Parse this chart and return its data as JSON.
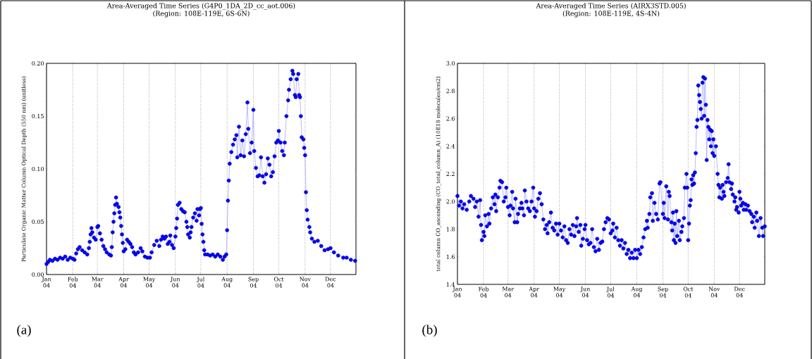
{
  "chart_data": [
    {
      "type": "line",
      "title": "Area-Averaged Time Series (G4P0_1DA_2D_cc_aot.006)",
      "subtitle": "(Region: 108E-119E, 6S-6N)",
      "ylabel": "Particulate Organic Matter Column Optical Depth (550 nm)  (unitless)",
      "annotations": [
        "(a)"
      ],
      "marker": "circle",
      "line_style": "solid",
      "grid": "x",
      "xlim": [
        "2004-01-01",
        "2004-12-31"
      ],
      "xticks": [
        {
          "value": "2004-01-01",
          "label": "Jan 04"
        },
        {
          "value": "2004-02-01",
          "label": "Feb 04"
        },
        {
          "value": "2004-03-01",
          "label": "Mar 04"
        },
        {
          "value": "2004-04-01",
          "label": "Apr 04"
        },
        {
          "value": "2004-05-01",
          "label": "May 04"
        },
        {
          "value": "2004-06-01",
          "label": "Jun 04"
        },
        {
          "value": "2004-07-01",
          "label": "Jul 04"
        },
        {
          "value": "2004-08-01",
          "label": "Aug 04"
        },
        {
          "value": "2004-09-01",
          "label": "Sep 04"
        },
        {
          "value": "2004-10-01",
          "label": "Oct 04"
        },
        {
          "value": "2004-11-01",
          "label": "Nov 04"
        },
        {
          "value": "2004-12-01",
          "label": "Dec 04"
        }
      ],
      "ylim": [
        0,
        0.2
      ],
      "yticks": [
        {
          "value": 0,
          "label": "0.00"
        },
        0.05,
        {
          "value": 0.1,
          "label": "0.10"
        },
        0.15,
        {
          "value": 0.2,
          "label": "0.20"
        }
      ],
      "x": [
        "2004-01-01",
        "2004-01-03",
        "2004-01-05",
        "2004-01-08",
        "2004-01-11",
        "2004-01-14",
        "2004-01-17",
        "2004-01-20",
        "2004-01-23",
        "2004-01-26",
        "2004-01-29",
        "2004-02-01",
        "2004-02-03",
        "2004-02-05",
        "2004-02-07",
        "2004-02-09",
        "2004-02-12",
        "2004-02-15",
        "2004-02-18",
        "2004-02-20",
        "2004-02-21",
        "2004-02-22",
        "2004-02-23",
        "2004-02-24",
        "2004-02-26",
        "2004-02-28",
        "2004-03-01",
        "2004-03-02",
        "2004-03-04",
        "2004-03-06",
        "2004-03-08",
        "2004-03-10",
        "2004-03-12",
        "2004-03-15",
        "2004-03-17",
        "2004-03-18",
        "2004-03-19",
        "2004-03-20",
        "2004-03-21",
        "2004-03-22",
        "2004-03-23",
        "2004-03-24",
        "2004-03-26",
        "2004-03-27",
        "2004-03-28",
        "2004-03-29",
        "2004-03-30",
        "2004-03-31",
        "2004-04-01",
        "2004-04-03",
        "2004-04-05",
        "2004-04-07",
        "2004-04-09",
        "2004-04-11",
        "2004-04-13",
        "2004-04-15",
        "2004-04-18",
        "2004-04-21",
        "2004-04-23",
        "2004-04-26",
        "2004-04-29",
        "2004-05-02",
        "2004-05-04",
        "2004-05-07",
        "2004-05-10",
        "2004-05-13",
        "2004-05-15",
        "2004-05-17",
        "2004-05-19",
        "2004-05-21",
        "2004-05-23",
        "2004-05-25",
        "2004-05-26",
        "2004-05-28",
        "2004-05-30",
        "2004-06-01",
        "2004-06-02",
        "2004-06-03",
        "2004-06-04",
        "2004-06-06",
        "2004-06-08",
        "2004-06-10",
        "2004-06-12",
        "2004-06-14",
        "2004-06-15",
        "2004-06-16",
        "2004-06-18",
        "2004-06-19",
        "2004-06-20",
        "2004-06-22",
        "2004-06-24",
        "2004-06-26",
        "2004-06-27",
        "2004-06-29",
        "2004-06-30",
        "2004-07-01",
        "2004-07-02",
        "2004-07-03",
        "2004-07-04",
        "2004-07-05",
        "2004-07-06",
        "2004-07-09",
        "2004-07-12",
        "2004-07-15",
        "2004-07-18",
        "2004-07-21",
        "2004-07-24",
        "2004-07-27",
        "2004-07-29",
        "2004-07-31",
        "2004-08-01",
        "2004-08-02",
        "2004-08-03",
        "2004-08-04",
        "2004-08-06",
        "2004-08-08",
        "2004-08-10",
        "2004-08-12",
        "2004-08-13",
        "2004-08-15",
        "2004-08-17",
        "2004-08-19",
        "2004-08-21",
        "2004-08-23",
        "2004-08-25",
        "2004-08-26",
        "2004-08-28",
        "2004-08-30",
        "2004-09-01",
        "2004-09-02",
        "2004-09-04",
        "2004-09-06",
        "2004-09-08",
        "2004-09-10",
        "2004-09-12",
        "2004-09-14",
        "2004-09-16",
        "2004-09-18",
        "2004-09-20",
        "2004-09-22",
        "2004-09-24",
        "2004-09-26",
        "2004-09-28",
        "2004-09-30",
        "2004-10-01",
        "2004-10-03",
        "2004-10-05",
        "2004-10-07",
        "2004-10-08",
        "2004-10-10",
        "2004-10-12",
        "2004-10-13",
        "2004-10-15",
        "2004-10-17",
        "2004-10-18",
        "2004-10-20",
        "2004-10-21",
        "2004-10-22",
        "2004-10-24",
        "2004-10-25",
        "2004-10-26",
        "2004-10-27",
        "2004-10-28",
        "2004-10-30",
        "2004-10-31",
        "2004-11-01",
        "2004-11-02",
        "2004-11-03",
        "2004-11-04",
        "2004-11-06",
        "2004-11-07",
        "2004-11-09",
        "2004-11-12",
        "2004-11-16",
        "2004-11-20",
        "2004-11-24",
        "2004-11-28",
        "2004-12-01",
        "2004-12-05",
        "2004-12-10",
        "2004-12-16",
        "2004-12-20",
        "2004-12-25",
        "2004-12-30"
      ],
      "series": [
        {
          "color": "#0000ff",
          "values": [
            0.01,
            0.012,
            0.014,
            0.013,
            0.015,
            0.014,
            0.016,
            0.015,
            0.017,
            0.014,
            0.016,
            0.015,
            0.014,
            0.02,
            0.024,
            0.026,
            0.023,
            0.021,
            0.019,
            0.025,
            0.031,
            0.038,
            0.044,
            0.04,
            0.035,
            0.033,
            0.045,
            0.046,
            0.039,
            0.033,
            0.027,
            0.024,
            0.021,
            0.019,
            0.018,
            0.026,
            0.04,
            0.05,
            0.058,
            0.066,
            0.073,
            0.067,
            0.064,
            0.059,
            0.054,
            0.046,
            0.038,
            0.03,
            0.022,
            0.024,
            0.033,
            0.031,
            0.029,
            0.026,
            0.021,
            0.019,
            0.021,
            0.025,
            0.022,
            0.017,
            0.016,
            0.016,
            0.021,
            0.028,
            0.032,
            0.027,
            0.033,
            0.036,
            0.034,
            0.036,
            0.029,
            0.031,
            0.037,
            0.028,
            0.025,
            0.036,
            0.044,
            0.053,
            0.066,
            0.068,
            0.062,
            0.06,
            0.059,
            0.05,
            0.045,
            0.038,
            0.035,
            0.04,
            0.045,
            0.054,
            0.058,
            0.051,
            0.062,
            0.056,
            0.062,
            0.063,
            0.048,
            0.038,
            0.031,
            0.023,
            0.019,
            0.019,
            0.018,
            0.019,
            0.017,
            0.019,
            0.017,
            0.014,
            0.017,
            0.019,
            0.042,
            0.07,
            0.089,
            0.105,
            0.116,
            0.123,
            0.128,
            0.132,
            0.111,
            0.14,
            0.113,
            0.127,
            0.112,
            0.133,
            0.163,
            0.138,
            0.115,
            0.125,
            0.156,
            0.117,
            0.101,
            0.093,
            0.094,
            0.111,
            0.093,
            0.087,
            0.095,
            0.11,
            0.104,
            0.093,
            0.097,
            0.112,
            0.125,
            0.127,
            0.136,
            0.125,
            0.117,
            0.113,
            0.125,
            0.15,
            0.165,
            0.175,
            0.185,
            0.193,
            0.19,
            0.17,
            0.168,
            0.185,
            0.19,
            0.17,
            0.168,
            0.15,
            0.13,
            0.128,
            0.12,
            0.113,
            0.078,
            0.061,
            0.052,
            0.045,
            0.04,
            0.034,
            0.031,
            0.032,
            0.027,
            0.023,
            0.024,
            0.025,
            0.021,
            0.018,
            0.016,
            0.016,
            0.014,
            0.013
          ]
        }
      ]
    },
    {
      "type": "line",
      "title": "Area-Averaged Time Series (AIRX3STD.005)",
      "subtitle": "(Region: 108E-119E, 4S-4N)",
      "ylabel": "total column CO_ascending (CO_total_column_A)  (10E18 molecules/cm2)",
      "annotations": [
        "(b)"
      ],
      "marker": "circle",
      "line_style": "solid",
      "grid": "x",
      "xlim": [
        "2004-01-01",
        "2004-12-31"
      ],
      "xticks": [
        {
          "value": "2004-01-01",
          "label": "Jan 04"
        },
        {
          "value": "2004-02-01",
          "label": "Feb 04"
        },
        {
          "value": "2004-03-01",
          "label": "Mar 04"
        },
        {
          "value": "2004-04-01",
          "label": "Apr 04"
        },
        {
          "value": "2004-05-01",
          "label": "May 04"
        },
        {
          "value": "2004-06-01",
          "label": "Jun 04"
        },
        {
          "value": "2004-07-01",
          "label": "Jul 04"
        },
        {
          "value": "2004-08-01",
          "label": "Aug 04"
        },
        {
          "value": "2004-09-01",
          "label": "Sep 04"
        },
        {
          "value": "2004-10-01",
          "label": "Oct 04"
        },
        {
          "value": "2004-11-01",
          "label": "Nov 04"
        },
        {
          "value": "2004-12-01",
          "label": "Dec 04"
        }
      ],
      "ylim": [
        1.4,
        3.0
      ],
      "yticks": [
        1.4,
        1.6,
        1.8,
        {
          "value": 2,
          "label": "2.0"
        },
        2.2,
        2.4,
        2.6,
        2.8,
        {
          "value": 3,
          "label": "3.0"
        }
      ],
      "x": [
        "2004-01-01",
        "2004-01-03",
        "2004-01-05",
        "2004-01-07",
        "2004-01-09",
        "2004-01-12",
        "2004-01-15",
        "2004-01-17",
        "2004-01-20",
        "2004-01-22",
        "2004-01-24",
        "2004-01-26",
        "2004-01-28",
        "2004-01-29",
        "2004-01-30",
        "2004-02-01",
        "2004-02-02",
        "2004-02-03",
        "2004-02-05",
        "2004-02-07",
        "2004-02-08",
        "2004-02-10",
        "2004-02-12",
        "2004-02-14",
        "2004-02-15",
        "2004-02-16",
        "2004-02-18",
        "2004-02-20",
        "2004-02-21",
        "2004-02-23",
        "2004-02-25",
        "2004-02-27",
        "2004-02-28",
        "2004-03-01",
        "2004-03-03",
        "2004-03-04",
        "2004-03-06",
        "2004-03-07",
        "2004-03-09",
        "2004-03-10",
        "2004-03-12",
        "2004-03-13",
        "2004-03-15",
        "2004-03-17",
        "2004-03-18",
        "2004-03-20",
        "2004-03-21",
        "2004-03-23",
        "2004-03-25",
        "2004-03-27",
        "2004-03-29",
        "2004-03-31",
        "2004-04-01",
        "2004-04-02",
        "2004-04-04",
        "2004-04-06",
        "2004-04-08",
        "2004-04-10",
        "2004-04-12",
        "2004-04-14",
        "2004-04-16",
        "2004-04-17",
        "2004-04-19",
        "2004-04-21",
        "2004-04-23",
        "2004-04-25",
        "2004-04-27",
        "2004-04-29",
        "2004-05-01",
        "2004-05-03",
        "2004-05-05",
        "2004-05-07",
        "2004-05-09",
        "2004-05-11",
        "2004-05-13",
        "2004-05-15",
        "2004-05-17",
        "2004-05-19",
        "2004-05-21",
        "2004-05-22",
        "2004-05-24",
        "2004-05-26",
        "2004-05-27",
        "2004-05-29",
        "2004-05-31",
        "2004-06-01",
        "2004-06-03",
        "2004-06-05",
        "2004-06-07",
        "2004-06-09",
        "2004-06-11",
        "2004-06-13",
        "2004-06-15",
        "2004-06-17",
        "2004-06-19",
        "2004-06-21",
        "2004-06-23",
        "2004-06-25",
        "2004-06-27",
        "2004-06-29",
        "2004-07-01",
        "2004-07-03",
        "2004-07-04",
        "2004-07-06",
        "2004-07-08",
        "2004-07-10",
        "2004-07-12",
        "2004-07-14",
        "2004-07-16",
        "2004-07-18",
        "2004-07-20",
        "2004-07-22",
        "2004-07-24",
        "2004-07-26",
        "2004-07-28",
        "2004-07-30",
        "2004-08-01",
        "2004-08-03",
        "2004-08-05",
        "2004-08-07",
        "2004-08-09",
        "2004-08-11",
        "2004-08-13",
        "2004-08-14",
        "2004-08-16",
        "2004-08-17",
        "2004-08-19",
        "2004-08-20",
        "2004-08-22",
        "2004-08-24",
        "2004-08-26",
        "2004-08-28",
        "2004-08-29",
        "2004-09-01",
        "2004-09-02",
        "2004-09-03",
        "2004-09-05",
        "2004-09-07",
        "2004-09-08",
        "2004-09-09",
        "2004-09-11",
        "2004-09-12",
        "2004-09-13",
        "2004-09-14",
        "2004-09-15",
        "2004-09-16",
        "2004-09-17",
        "2004-09-18",
        "2004-09-20",
        "2004-09-21",
        "2004-09-23",
        "2004-09-24",
        "2004-09-26",
        "2004-09-27",
        "2004-09-29",
        "2004-09-30",
        "2004-10-01",
        "2004-10-02",
        "2004-10-03",
        "2004-10-04",
        "2004-10-05",
        "2004-10-06",
        "2004-10-07",
        "2004-10-08",
        "2004-10-09",
        "2004-10-10",
        "2004-10-11",
        "2004-10-12",
        "2004-10-13",
        "2004-10-14",
        "2004-10-15",
        "2004-10-16",
        "2004-10-17",
        "2004-10-18",
        "2004-10-19",
        "2004-10-20",
        "2004-10-21",
        "2004-10-22",
        "2004-10-23",
        "2004-10-24",
        "2004-10-25",
        "2004-10-26",
        "2004-10-27",
        "2004-10-28",
        "2004-10-29",
        "2004-10-30",
        "2004-10-31",
        "2004-11-01",
        "2004-11-03",
        "2004-11-05",
        "2004-11-06",
        "2004-11-07",
        "2004-11-08",
        "2004-11-10",
        "2004-11-11",
        "2004-11-12",
        "2004-11-13",
        "2004-11-15",
        "2004-11-17",
        "2004-11-18",
        "2004-11-19",
        "2004-11-21",
        "2004-11-22",
        "2004-11-23",
        "2004-11-25",
        "2004-11-26",
        "2004-11-27",
        "2004-11-28",
        "2004-11-30",
        "2004-12-01",
        "2004-12-02",
        "2004-12-03",
        "2004-12-05",
        "2004-12-06",
        "2004-12-08",
        "2004-12-09",
        "2004-12-11",
        "2004-12-13",
        "2004-12-15",
        "2004-12-16",
        "2004-12-18",
        "2004-12-19",
        "2004-12-21",
        "2004-12-22",
        "2004-12-24",
        "2004-12-26",
        "2004-12-28",
        "2004-12-29",
        "2004-12-31"
      ],
      "series": [
        {
          "color": "#0000ff",
          "values": [
            2.04,
            1.97,
            2.0,
            1.95,
            1.98,
            1.94,
            2.0,
            2.04,
            2.02,
            1.96,
            2.0,
            1.89,
            2.01,
            1.83,
            1.72,
            1.78,
            1.75,
            1.9,
            1.82,
            1.91,
            1.84,
            1.95,
            2.03,
            1.98,
            2.05,
            1.93,
            2.03,
            2.1,
            2.15,
            2.14,
            2.0,
            2.03,
            2.1,
            1.96,
            1.9,
            1.97,
            2.07,
            1.95,
            1.85,
            2.02,
            1.85,
            1.91,
            1.95,
            1.99,
            1.95,
            1.9,
            2.08,
            2.0,
            1.95,
            1.93,
            2.0,
            2.1,
            1.95,
            1.89,
            1.93,
            2.02,
            2.06,
            1.98,
            1.87,
            1.8,
            1.83,
            1.77,
            1.85,
            1.92,
            1.81,
            1.79,
            1.84,
            1.76,
            1.84,
            1.79,
            1.74,
            1.82,
            1.72,
            1.7,
            1.8,
            1.76,
            1.83,
            1.75,
            1.82,
            1.88,
            1.78,
            1.83,
            1.68,
            1.73,
            1.8,
            1.83,
            1.72,
            1.69,
            1.7,
            1.8,
            1.67,
            1.64,
            1.73,
            1.65,
            1.7,
            1.71,
            1.8,
            1.85,
            1.88,
            1.87,
            1.77,
            1.79,
            1.84,
            1.74,
            1.81,
            1.72,
            1.68,
            1.72,
            1.66,
            1.7,
            1.62,
            1.65,
            1.59,
            1.63,
            1.59,
            1.65,
            1.59,
            1.65,
            1.62,
            1.67,
            1.74,
            1.8,
            1.86,
            1.81,
            1.91,
            2.03,
            2.06,
            1.86,
            1.99,
            1.91,
            1.87,
            2.13,
            2.14,
            1.91,
            1.99,
            1.88,
            2.11,
            1.87,
            2.07,
            2.04,
            1.85,
            1.79,
            1.92,
            1.72,
            1.84,
            1.7,
            1.93,
            1.75,
            1.86,
            1.72,
            1.78,
            1.82,
            1.88,
            2.1,
            2.2,
            2.1,
            1.72,
            1.84,
            1.97,
            2.01,
            2.16,
            2.12,
            2.19,
            2.13,
            2.21,
            2.35,
            2.54,
            2.59,
            2.84,
            2.77,
            2.72,
            2.67,
            2.6,
            2.86,
            2.9,
            2.62,
            2.89,
            2.7,
            2.3,
            2.59,
            2.54,
            2.45,
            2.52,
            2.4,
            2.51,
            2.35,
            2.45,
            2.33,
            2.4,
            2.2,
            2.12,
            2.03,
            2.1,
            2.02,
            2.12,
            2.07,
            2.04,
            2.14,
            2.17,
            2.27,
            2.14,
            2.09,
            2.13,
            2.05,
            2.0,
            2.03,
            1.94,
            1.96,
            1.92,
            2.07,
            2.02,
            1.97,
            1.99,
            1.94,
            1.98,
            1.94,
            1.97,
            1.93,
            1.91,
            1.85,
            1.89,
            1.81,
            1.92,
            1.86,
            1.75,
            1.88,
            1.81,
            1.75,
            1.82
          ]
        }
      ]
    }
  ]
}
